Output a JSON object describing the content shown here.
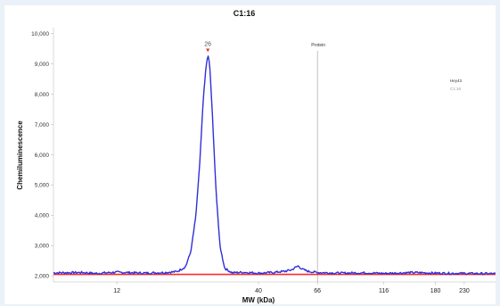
{
  "chart_data": {
    "type": "line",
    "title": "C1:16",
    "xlabel": "MW (kDa)",
    "ylabel": "Chemiluminescence",
    "y_ticks": [
      "2,000",
      "3,000",
      "4,000",
      "5,000",
      "6,000",
      "7,000",
      "8,000",
      "9,000",
      "10,000"
    ],
    "ylim": [
      1800,
      10200
    ],
    "x_ticks": [
      "12",
      "40",
      "66",
      "116",
      "180",
      "230"
    ],
    "x_scale": "log",
    "xlim": [
      7,
      300
    ],
    "annotation": {
      "label": "Protein",
      "x": 66
    },
    "peak": {
      "label": "26",
      "x": 26,
      "y": 9300
    },
    "baseline": {
      "y": 2050,
      "color": "#ff2a2a"
    },
    "series": [
      {
        "color": "#2f2fd8",
        "x": [
          7,
          9,
          10,
          12,
          15,
          18,
          20,
          21.5,
          22.5,
          23.5,
          24.3,
          25,
          25.6,
          26,
          26.4,
          27,
          27.8,
          28.8,
          30,
          32,
          35,
          40,
          45,
          50,
          53,
          56,
          58,
          61,
          66,
          80,
          100,
          116,
          150,
          180,
          230,
          300
        ],
        "y": [
          2100,
          2110,
          2080,
          2120,
          2090,
          2110,
          2140,
          2300,
          2800,
          4000,
          5800,
          7800,
          8900,
          9300,
          9000,
          7400,
          5000,
          3000,
          2250,
          2100,
          2120,
          2090,
          2110,
          2150,
          2200,
          2330,
          2220,
          2150,
          2110,
          2090,
          2100,
          2080,
          2110,
          2090,
          2080,
          2070
        ]
      }
    ],
    "legend": [
      "Hey43",
      "C1:16"
    ],
    "grid": false
  }
}
